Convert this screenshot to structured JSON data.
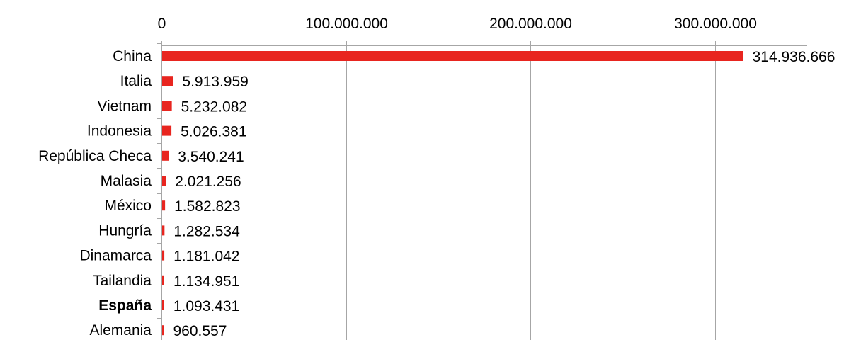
{
  "chart_data": {
    "type": "bar",
    "orientation": "horizontal",
    "title": "",
    "xlabel": "",
    "ylabel": "",
    "xlim": [
      0,
      350000000
    ],
    "x_ticks": [
      0,
      100000000,
      200000000,
      300000000
    ],
    "x_tick_labels": [
      "0",
      "100.000.000",
      "200.000.000",
      "300.000.000"
    ],
    "x_axis_position": "top",
    "grid": true,
    "legend": "none",
    "categories": [
      "China",
      "Italia",
      "Vietnam",
      "Indonesia",
      "República Checa",
      "Malasia",
      "México",
      "Hungría",
      "Dinamarca",
      "Tailandia",
      "España",
      "Alemania"
    ],
    "highlight_category": "España",
    "values": [
      314936666,
      5913959,
      5232082,
      5026381,
      3540241,
      2021256,
      1582823,
      1282534,
      1181042,
      1134951,
      1093431,
      960557
    ],
    "data_labels": [
      "314.936.666",
      "5.913.959",
      "5.232.082",
      "5.026.381",
      "3.540.241",
      "2.021.256",
      "1.582.823",
      "1.282.534",
      "1.181.042",
      "1.134.951",
      "1.093.431",
      "960.557"
    ],
    "colors": {
      "bar": "#e8251f",
      "grid": "#a6a6a6",
      "axis": "#a6a6a6",
      "text": "#000000"
    }
  }
}
